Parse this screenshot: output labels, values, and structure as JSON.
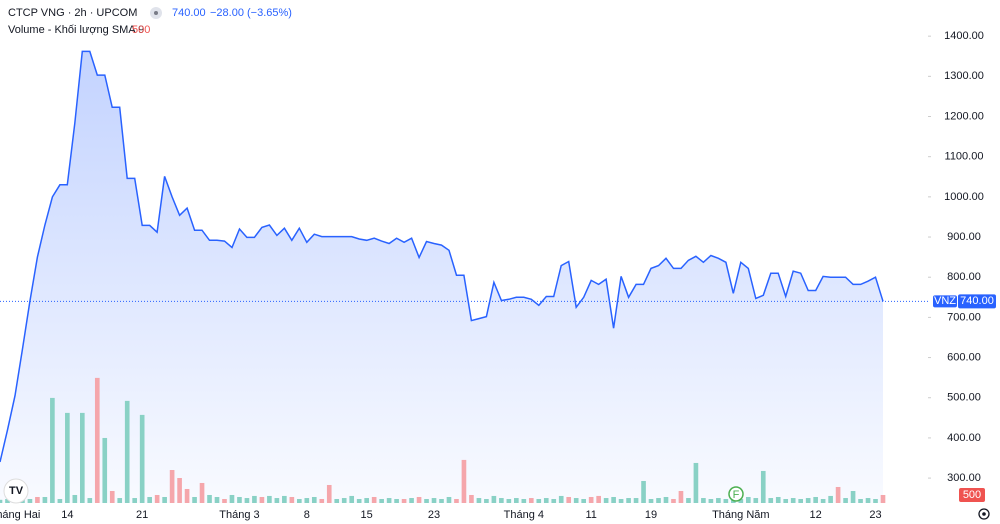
{
  "chart_data": {
    "type": "area",
    "title": "CTCP VNG · 2h · UPCOM",
    "last_price": "740.00",
    "change": "−28.00 (−3.65%)",
    "volume_title": "Volume - Khối lượng SMA 9",
    "volume_last": "500",
    "symbol": "VNZ",
    "categories": [
      null,
      null,
      "Tháng Hai",
      null,
      null,
      null,
      null,
      null,
      null,
      "14",
      null,
      null,
      null,
      null,
      null,
      null,
      null,
      null,
      null,
      "21",
      null,
      null,
      null,
      null,
      null,
      null,
      null,
      null,
      null,
      null,
      null,
      null,
      "Tháng 3",
      null,
      null,
      null,
      null,
      null,
      null,
      null,
      null,
      "8",
      null,
      null,
      null,
      null,
      null,
      null,
      null,
      "15",
      null,
      null,
      null,
      null,
      null,
      null,
      null,
      null,
      "23",
      null,
      null,
      null,
      null,
      null,
      null,
      null,
      null,
      null,
      null,
      null,
      "Tháng 4",
      null,
      null,
      null,
      null,
      null,
      null,
      null,
      null,
      "11",
      null,
      null,
      null,
      null,
      null,
      null,
      null,
      "19",
      null,
      null,
      null,
      null,
      null,
      null,
      null,
      null,
      null,
      null,
      null,
      "Tháng Năm",
      null,
      null,
      null,
      null,
      null,
      null,
      null,
      null,
      null,
      "12",
      null,
      null,
      null,
      null,
      null,
      null,
      null,
      "23",
      null
    ],
    "series": [
      {
        "name": "CTCP VNG",
        "color": "#2962ff",
        "values": [
          340,
          420,
          505,
          620,
          740,
          850,
          930,
          1000,
          1030,
          1030,
          1183,
          1362,
          1362,
          1303,
          1303,
          1223,
          1223,
          1046,
          1046,
          929,
          929,
          912,
          1051,
          1000,
          954,
          972,
          917,
          917,
          892,
          892,
          890,
          874,
          920,
          899,
          899,
          924,
          930,
          904,
          922,
          892,
          922,
          887,
          907,
          901,
          901,
          901,
          901,
          901,
          895,
          892,
          897,
          890,
          884,
          897,
          887,
          897,
          849,
          889,
          884,
          880,
          867,
          805,
          805,
          692,
          697,
          702,
          787,
          742,
          745,
          750,
          750,
          745,
          730,
          752,
          752,
          829,
          839,
          725,
          750,
          792,
          782,
          795,
          673,
          802,
          750,
          782,
          782,
          822,
          829,
          847,
          822,
          822,
          842,
          852,
          837,
          854,
          847,
          837,
          760,
          837,
          822,
          747,
          755,
          810,
          810,
          752,
          815,
          810,
          767,
          767,
          802,
          800,
          800,
          800,
          782,
          782,
          790,
          800,
          740
        ]
      },
      {
        "name": "Volume",
        "axis": "y2",
        "values": [
          200,
          250,
          250,
          250,
          250,
          375,
          375,
          6560,
          250,
          5625,
          500,
          5625,
          310,
          7810,
          4060,
          750,
          310,
          6375,
          310,
          5500,
          375,
          500,
          375,
          2060,
          1560,
          875,
          375,
          1250,
          500,
          375,
          250,
          500,
          375,
          310,
          440,
          375,
          440,
          310,
          440,
          375,
          250,
          310,
          375,
          250,
          1125,
          250,
          310,
          440,
          250,
          310,
          375,
          250,
          310,
          250,
          250,
          310,
          375,
          250,
          310,
          250,
          375,
          250,
          2690,
          500,
          310,
          250,
          440,
          310,
          250,
          310,
          250,
          310,
          250,
          310,
          250,
          440,
          375,
          310,
          250,
          375,
          440,
          310,
          375,
          250,
          310,
          310,
          1375,
          250,
          310,
          375,
          250,
          750,
          310,
          2500,
          310,
          250,
          310,
          250,
          310,
          250,
          375,
          310,
          2000,
          310,
          375,
          250,
          310,
          250,
          310,
          375,
          250,
          440,
          1000,
          310,
          750,
          250,
          310,
          250,
          500
        ],
        "colors": [
          "#89d1c5",
          "#89d1c5",
          "#89d1c5",
          "#89d1c5",
          "#89d1c5",
          "#f5a6ab",
          "#89d1c5",
          "#89d1c5",
          "#89d1c5",
          "#89d1c5",
          "#89d1c5",
          "#89d1c5",
          "#89d1c5",
          "#f5a6ab",
          "#89d1c5",
          "#f5a6ab",
          "#89d1c5",
          "#89d1c5",
          "#89d1c5",
          "#89d1c5",
          "#89d1c5",
          "#f5a6ab",
          "#89d1c5",
          "#f5a6ab",
          "#f5a6ab",
          "#f5a6ab",
          "#89d1c5",
          "#f5a6ab",
          "#89d1c5",
          "#89d1c5",
          "#f5a6ab",
          "#89d1c5",
          "#89d1c5",
          "#89d1c5",
          "#89d1c5",
          "#f5a6ab",
          "#89d1c5",
          "#89d1c5",
          "#89d1c5",
          "#f5a6ab",
          "#89d1c5",
          "#89d1c5",
          "#89d1c5",
          "#f5a6ab",
          "#f5a6ab",
          "#89d1c5",
          "#89d1c5",
          "#89d1c5",
          "#89d1c5",
          "#89d1c5",
          "#f5a6ab",
          "#89d1c5",
          "#89d1c5",
          "#89d1c5",
          "#f5a6ab",
          "#89d1c5",
          "#f5a6ab",
          "#89d1c5",
          "#89d1c5",
          "#89d1c5",
          "#89d1c5",
          "#f5a6ab",
          "#f5a6ab",
          "#f5a6ab",
          "#89d1c5",
          "#89d1c5",
          "#89d1c5",
          "#89d1c5",
          "#89d1c5",
          "#89d1c5",
          "#89d1c5",
          "#f5a6ab",
          "#89d1c5",
          "#89d1c5",
          "#89d1c5",
          "#89d1c5",
          "#f5a6ab",
          "#89d1c5",
          "#89d1c5",
          "#f5a6ab",
          "#f5a6ab",
          "#89d1c5",
          "#89d1c5",
          "#89d1c5",
          "#89d1c5",
          "#89d1c5",
          "#89d1c5",
          "#89d1c5",
          "#89d1c5",
          "#89d1c5",
          "#f5a6ab",
          "#f5a6ab",
          "#89d1c5",
          "#89d1c5",
          "#89d1c5",
          "#89d1c5",
          "#89d1c5",
          "#89d1c5",
          "#89d1c5",
          "#89d1c5",
          "#89d1c5",
          "#89d1c5",
          "#89d1c5",
          "#89d1c5",
          "#89d1c5",
          "#89d1c5",
          "#89d1c5",
          "#89d1c5",
          "#89d1c5",
          "#89d1c5",
          "#89d1c5",
          "#89d1c5",
          "#f5a6ab",
          "#89d1c5",
          "#89d1c5",
          "#89d1c5",
          "#89d1c5",
          "#89d1c5",
          "#f5a6ab"
        ]
      }
    ],
    "ylim": [
      238,
      1490
    ],
    "yticks": [
      {
        "value": 300,
        "label": "300.00"
      },
      {
        "value": 400,
        "label": "400.00"
      },
      {
        "value": 500,
        "label": "500.00"
      },
      {
        "value": 600,
        "label": "600.00"
      },
      {
        "value": 700,
        "label": "700.00"
      },
      {
        "value": 800,
        "label": "800.00"
      },
      {
        "value": 900,
        "label": "900.00"
      },
      {
        "value": 1000,
        "label": "1000.00"
      },
      {
        "value": 1100,
        "label": "1100.00"
      },
      {
        "value": 1200,
        "label": "1200.00"
      },
      {
        "value": 1300,
        "label": "1300.00"
      },
      {
        "value": 1400,
        "label": "1400.00"
      }
    ],
    "y2lim": [
      0,
      31400
    ]
  }
}
